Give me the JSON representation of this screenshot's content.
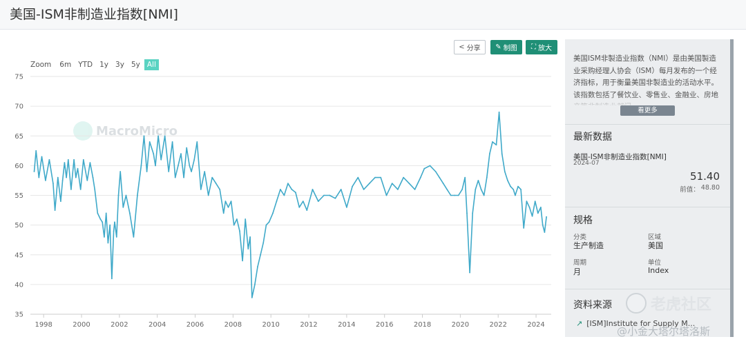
{
  "page": {
    "title": "美国-ISM非制造业指数[NMI]"
  },
  "toolbar": {
    "share_label": "分享",
    "draw_label": "制图",
    "zoom_label": "放大"
  },
  "range_selector": {
    "label": "Zoom",
    "options": [
      "6m",
      "YTD",
      "1y",
      "3y",
      "5y",
      "All"
    ],
    "selected": "All"
  },
  "watermark": {
    "text": "MacroMicro"
  },
  "panel": {
    "description": "美国ISM非製造业指数（NMI）是由美国製造业采购经理人协会（ISM）每月发布的一个经济指标，用于衡量美国非製造业的活动水平。该指数包括了餐饮业、零售业、金融业、房地产等非制造业部门。",
    "more_label": "看更多",
    "latest": {
      "title": "最新数据",
      "series_name": "美国-ISM非制造业指数[NMI]",
      "date": "2024-07",
      "value": "51.40",
      "prev_label": "前值：",
      "prev_value": "48.80"
    },
    "specs": {
      "title": "规格",
      "category_label": "分类",
      "category_value": "生产制造",
      "region_label": "区域",
      "region_value": "美国",
      "period_label": "周期",
      "period_value": "月",
      "unit_label": "单位",
      "unit_value": "Index"
    },
    "source": {
      "title": "资料来源",
      "link_text": "[ISM]Institute for Supply M..."
    }
  },
  "overlay": {
    "logo_text": "老虎社区",
    "author_text": "@小金大塔尔塔洛斯"
  },
  "colors": {
    "line": "#3fa9c9",
    "accent": "#1f8f76",
    "grid": "#e6e6e6"
  },
  "chart_data": {
    "type": "line",
    "title": "",
    "xlabel": "",
    "ylabel": "",
    "ylim": [
      35,
      75
    ],
    "yticks": [
      35,
      40,
      45,
      50,
      55,
      60,
      65,
      70,
      75
    ],
    "xticks": [
      "1998",
      "2000",
      "2002",
      "2004",
      "2006",
      "2008",
      "2010",
      "2012",
      "2014",
      "2016",
      "2018",
      "2020",
      "2022",
      "2024"
    ],
    "grid": true,
    "series": [
      {
        "name": "",
        "x": [
          1997.5,
          1997.6,
          1997.75,
          1997.9,
          1998.1,
          1998.3,
          1998.5,
          1998.6,
          1998.75,
          1998.9,
          1999.0,
          1999.1,
          1999.2,
          1999.3,
          1999.45,
          1999.6,
          1999.7,
          1999.8,
          1999.95,
          2000.1,
          2000.3,
          2000.45,
          2000.6,
          2000.7,
          2000.85,
          2001.0,
          2001.1,
          2001.2,
          2001.3,
          2001.4,
          2001.5,
          2001.6,
          2001.7,
          2001.75,
          2001.85,
          2001.95,
          2002.05,
          2002.2,
          2002.35,
          2002.55,
          2002.75,
          2002.95,
          2003.15,
          2003.3,
          2003.45,
          2003.6,
          2003.8,
          2003.9,
          2004.05,
          2004.2,
          2004.4,
          2004.6,
          2004.8,
          2004.95,
          2005.1,
          2005.25,
          2005.4,
          2005.55,
          2005.7,
          2005.8,
          2005.95,
          2006.1,
          2006.3,
          2006.5,
          2006.7,
          2006.9,
          2007.1,
          2007.3,
          2007.5,
          2007.6,
          2007.75,
          2007.9,
          2008.05,
          2008.2,
          2008.35,
          2008.5,
          2008.65,
          2008.8,
          2008.9,
          2009.0,
          2009.15,
          2009.3,
          2009.45,
          2009.6,
          2009.75,
          2009.9,
          2010.1,
          2010.3,
          2010.5,
          2010.7,
          2010.9,
          2011.1,
          2011.3,
          2011.5,
          2011.7,
          2011.9,
          2012.2,
          2012.5,
          2012.8,
          2013.1,
          2013.4,
          2013.7,
          2014.0,
          2014.3,
          2014.6,
          2014.9,
          2015.2,
          2015.5,
          2015.8,
          2016.1,
          2016.4,
          2016.7,
          2017.0,
          2017.3,
          2017.6,
          2017.9,
          2018.1,
          2018.4,
          2018.7,
          2018.9,
          2019.1,
          2019.3,
          2019.5,
          2019.7,
          2019.9,
          2020.1,
          2020.25,
          2020.35,
          2020.5,
          2020.65,
          2020.8,
          2020.95,
          2021.1,
          2021.25,
          2021.4,
          2021.55,
          2021.7,
          2021.9,
          2022.05,
          2022.2,
          2022.35,
          2022.5,
          2022.65,
          2022.8,
          2022.9,
          2023.05,
          2023.2,
          2023.35,
          2023.5,
          2023.65,
          2023.8,
          2023.95,
          2024.1,
          2024.25,
          2024.35,
          2024.45,
          2024.55
        ],
        "y": [
          59,
          62.5,
          58,
          61.5,
          57.5,
          61,
          57,
          52.5,
          58,
          54,
          57.5,
          60.5,
          58,
          61,
          56,
          61,
          58,
          59.5,
          56,
          61,
          57.5,
          60.5,
          58,
          56,
          52,
          51,
          50.5,
          48,
          52,
          47,
          50,
          41,
          49,
          50.5,
          48,
          55,
          59,
          53,
          55,
          52,
          48,
          55,
          60,
          65,
          59,
          64,
          62,
          60,
          65,
          61,
          65,
          59,
          64,
          58,
          60,
          62,
          58,
          63,
          60,
          59,
          61,
          64,
          56,
          59,
          55,
          58,
          57,
          56,
          52,
          54,
          53,
          54,
          50,
          51,
          49,
          44,
          51,
          46,
          48,
          37.8,
          40,
          43,
          45,
          47,
          50,
          50.5,
          52,
          54,
          56,
          55,
          57,
          56,
          55.5,
          53,
          54,
          52.5,
          56,
          54,
          55,
          55,
          54.5,
          56,
          53,
          56.5,
          58,
          56,
          57,
          58,
          58,
          55,
          57,
          56,
          58,
          57,
          56,
          58,
          59.5,
          60,
          59,
          58,
          57,
          56,
          55,
          55,
          55,
          56,
          58,
          52,
          42,
          52,
          56,
          57.5,
          56,
          55,
          58,
          62,
          64,
          63.5,
          69,
          62,
          59,
          57.5,
          56.5,
          56,
          55,
          56.5,
          56,
          49.5,
          54,
          53,
          51.5,
          54,
          52,
          53,
          50,
          48.8,
          51.4
        ]
      }
    ]
  }
}
